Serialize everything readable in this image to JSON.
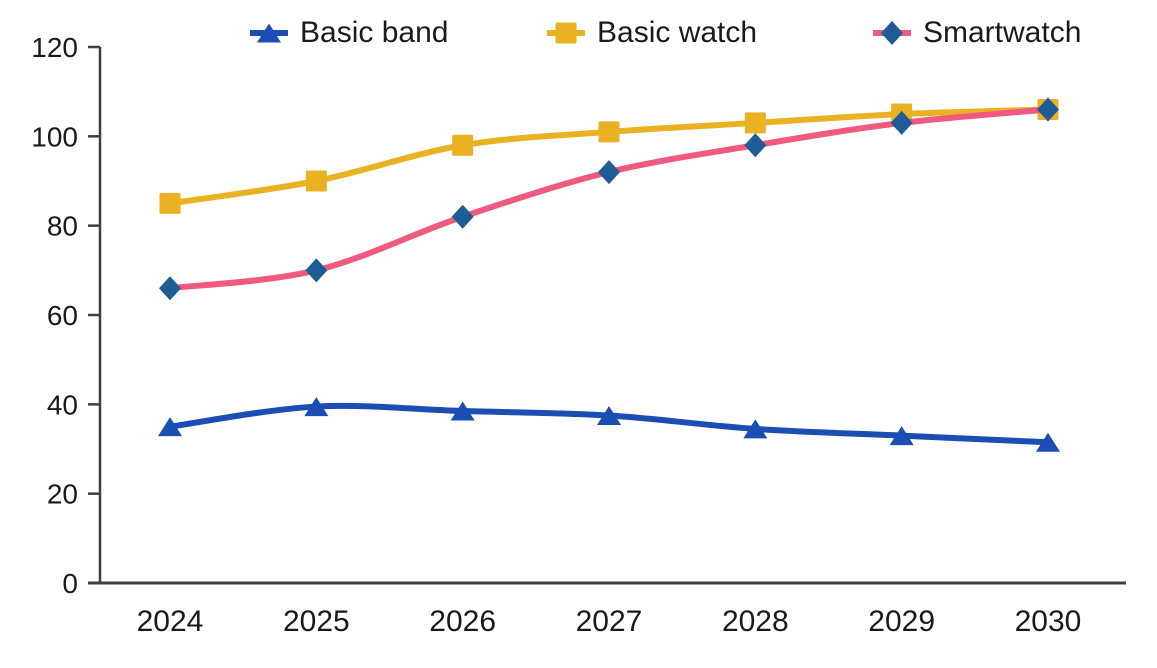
{
  "chart_data": {
    "type": "line",
    "title": "",
    "xlabel": "",
    "ylabel": "",
    "x": [
      "2024",
      "2025",
      "2026",
      "2027",
      "2028",
      "2029",
      "2030"
    ],
    "series": [
      {
        "name": "Basic band",
        "color": "#1b4eb2",
        "marker": "triangle",
        "marker_color": "#1b4eb2",
        "values": [
          35,
          39.5,
          38.5,
          37.5,
          34.5,
          33,
          31.5
        ]
      },
      {
        "name": "Basic watch",
        "color": "#eab222",
        "marker": "square",
        "marker_color": "#eab222",
        "values": [
          85,
          90,
          98,
          101,
          103,
          105,
          106
        ]
      },
      {
        "name": "Smartwatch",
        "color": "#ef5a7e",
        "marker": "diamond",
        "marker_color": "#1e5c96",
        "values": [
          66,
          70,
          82,
          92,
          98,
          103,
          106
        ]
      }
    ],
    "ylim": [
      0,
      120
    ],
    "yticks": [
      0,
      20,
      40,
      60,
      80,
      100,
      120
    ],
    "grid": false,
    "legend_position": "top",
    "axis_color": "#3f3f3f",
    "label_color": "#1a1a1a"
  }
}
